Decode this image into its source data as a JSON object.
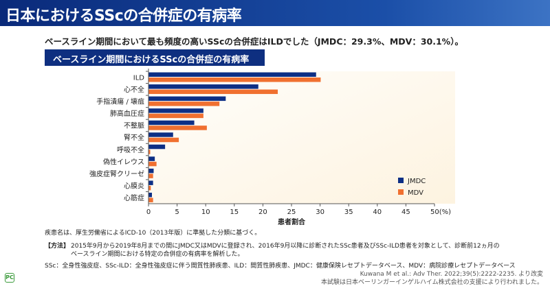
{
  "header": {
    "title": "日本におけるSScの合併症の有病率"
  },
  "lead": "ベースライン期間において最も頻度の高いSScの合併症はILDでした（JMDC：29.3%、MDV：30.1%）。",
  "subtitle": "ベースライン期間におけるSScの合併症の有病率",
  "chart_data": {
    "type": "bar",
    "orientation": "horizontal",
    "categories": [
      "ILD",
      "心不全",
      "手指潰瘍 / 壊疽",
      "肺高血圧症",
      "不整脈",
      "腎不全",
      "呼吸不全",
      "偽性イレウス",
      "強皮症腎クリーゼ",
      "心膜炎",
      "心筋症"
    ],
    "series": [
      {
        "name": "JMDC",
        "color": "#0d2f85",
        "values": [
          29.3,
          19.2,
          13.5,
          9.6,
          8.0,
          4.3,
          2.9,
          1.1,
          0.9,
          0.8,
          0.6
        ]
      },
      {
        "name": "MDV",
        "color": "#f07030",
        "values": [
          30.1,
          22.6,
          12.4,
          9.6,
          10.2,
          5.3,
          0.3,
          1.4,
          0.8,
          0.4,
          0.8
        ]
      }
    ],
    "xticks": [
      "0",
      "5",
      "10",
      "15",
      "20",
      "25",
      "30",
      "35",
      "40",
      "45",
      "50(%)"
    ],
    "xlim": [
      0,
      50
    ],
    "xlabel": "患者割合",
    "legend": "bottom-right",
    "grid": false
  },
  "notes": {
    "n1": "疾患名は、厚生労働省によるICD-10（2013年版）に準拠した分類に基づく。",
    "method_label": "【方法】",
    "method1": "2015年9月から2019年8月までの間にJMDC又はMDVに登録され、2016年9月以降に診断されたSSc患者及びSSc-ILD患者を対象として、診断前12ヵ月の",
    "method2": "ベースライン期間における特定の合併症の有病率を解析した。",
    "abbr": "SSc：全身性強皮症、SSc-ILD：全身性強皮症に伴う間質性肺疾患、ILD：間質性肺疾患、JMDC：健康保険レセプトデータベース、MDV：病院診療レセプトデータベース",
    "ref": "Kuwana M et al.: Adv Ther. 2022;39(5):2222-2235. より改変",
    "support": "本試験は日本ベーリンガーインゲルハイム株式会社の支援により行われました。"
  },
  "logo": "PC"
}
